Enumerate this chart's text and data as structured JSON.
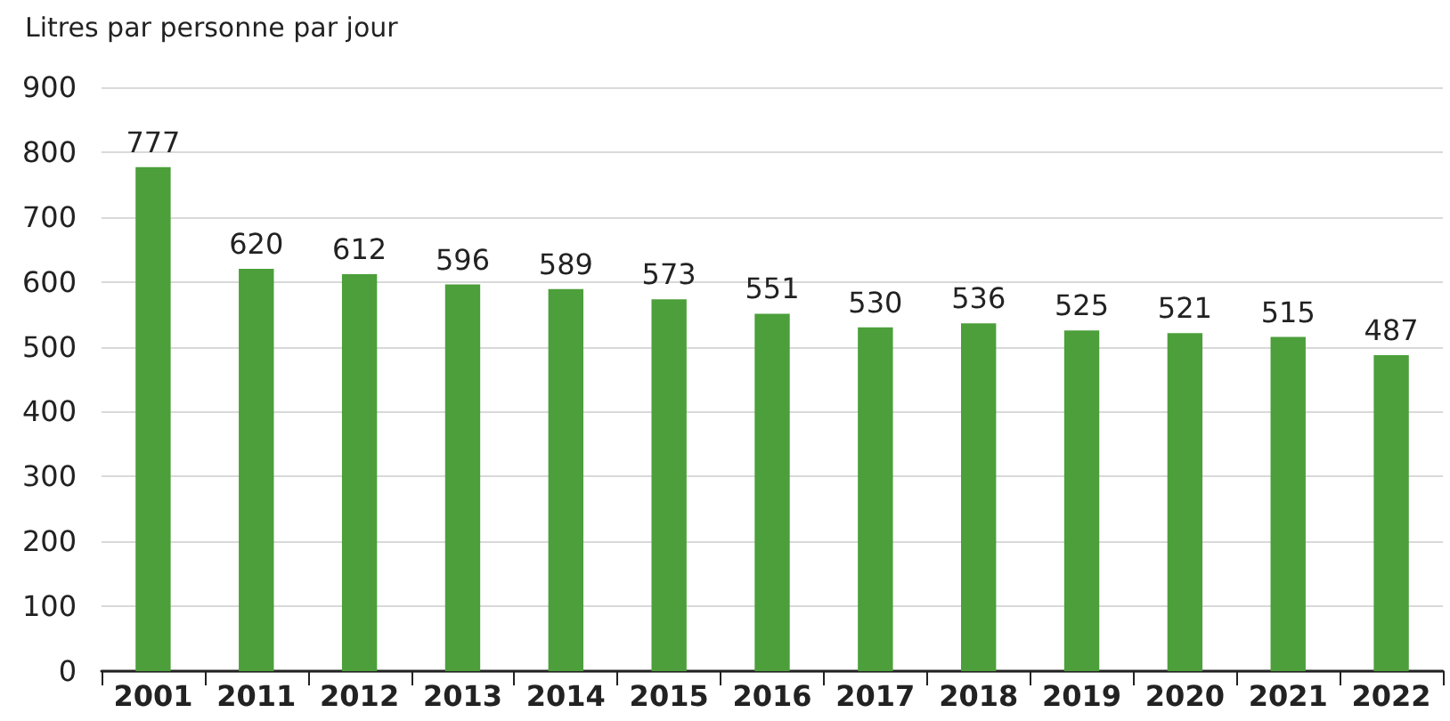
{
  "chart_data": {
    "type": "bar",
    "ylabel": "Litres par personne par jour",
    "categories": [
      "2001",
      "2011",
      "2012",
      "2013",
      "2014",
      "2015",
      "2016",
      "2017",
      "2018",
      "2019",
      "2020",
      "2021",
      "2022"
    ],
    "values": [
      777,
      620,
      612,
      596,
      589,
      573,
      551,
      530,
      536,
      525,
      521,
      515,
      487
    ],
    "color": "#4c9f3a",
    "ylim": [
      0,
      900
    ],
    "yticks": [
      0,
      100,
      200,
      300,
      400,
      500,
      600,
      700,
      800,
      900
    ],
    "grid": "y",
    "data_labels": true
  }
}
